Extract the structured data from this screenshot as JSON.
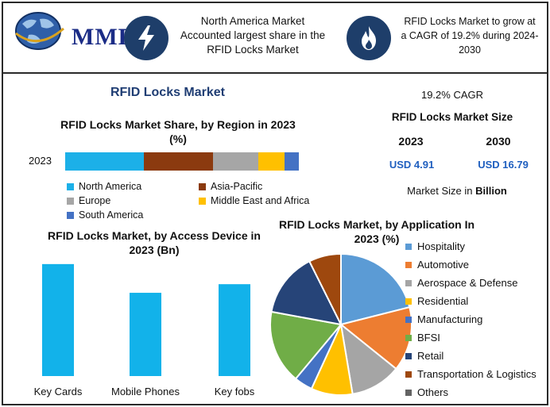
{
  "header": {
    "logo_text": "MMR",
    "box1_text": [
      "North America Market",
      "Accounted largest share in the",
      "RFID Locks Market"
    ],
    "box2_text": [
      "RFID Locks Market to grow at",
      "a CAGR of 19.2% during 2024-",
      "2030"
    ],
    "icon1": "lightning-icon",
    "icon2": "flame-icon"
  },
  "main_title": "RFID Locks Market",
  "stats": {
    "cagr": "19.2% CAGR",
    "size_title": "RFID Locks Market Size",
    "year_a": "2023",
    "year_b": "2030",
    "value_a": "USD 4.91",
    "value_b": "USD 16.79",
    "unit_note_prefix": "Market Size in ",
    "unit_note_bold": "Billion",
    "value_color": "#1f5fbf"
  },
  "chart_data": [
    {
      "type": "bar",
      "orientation": "horizontal-stacked",
      "title_line1": "RFID Locks Market Share, by Region in 2023",
      "title_line2": "(%)",
      "categories": [
        "2023"
      ],
      "series": [
        {
          "name": "North America",
          "values": [
            33
          ],
          "color": "#1cb0e8"
        },
        {
          "name": "Asia-Pacific",
          "values": [
            29
          ],
          "color": "#8b3a0f"
        },
        {
          "name": "Europe",
          "values": [
            19
          ],
          "color": "#a6a6a6"
        },
        {
          "name": "Middle East and Africa",
          "values": [
            11
          ],
          "color": "#ffc000"
        },
        {
          "name": "South America",
          "values": [
            7
          ],
          "color": "#4472c4"
        }
      ]
    },
    {
      "type": "bar",
      "title_line1": "RFID Locks Market, by Access Device in",
      "title_line2": "2023 (Bn)",
      "categories": [
        "Key Cards",
        "Mobile Phones",
        "Key fobs"
      ],
      "values": [
        1.95,
        1.45,
        1.6
      ],
      "color": "#12b2ea",
      "ylim": [
        0,
        2.1
      ]
    },
    {
      "type": "pie",
      "title_line1": "RFID Locks Market, by Application In",
      "title_line2": "2023 (%)",
      "labels": [
        "Hospitality",
        "Automotive",
        "Aerospace & Defense",
        "Residential",
        "Manufacturing",
        "BFSI",
        "Retail",
        "Transportation & Logistics",
        "Others"
      ],
      "values": [
        20,
        14,
        11,
        9,
        4,
        16,
        14,
        7,
        0
      ],
      "colors": [
        "#5b9bd5",
        "#ed7d31",
        "#a5a5a5",
        "#ffc000",
        "#4472c4",
        "#70ad47",
        "#264478",
        "#9e480e",
        "#636363"
      ]
    }
  ]
}
